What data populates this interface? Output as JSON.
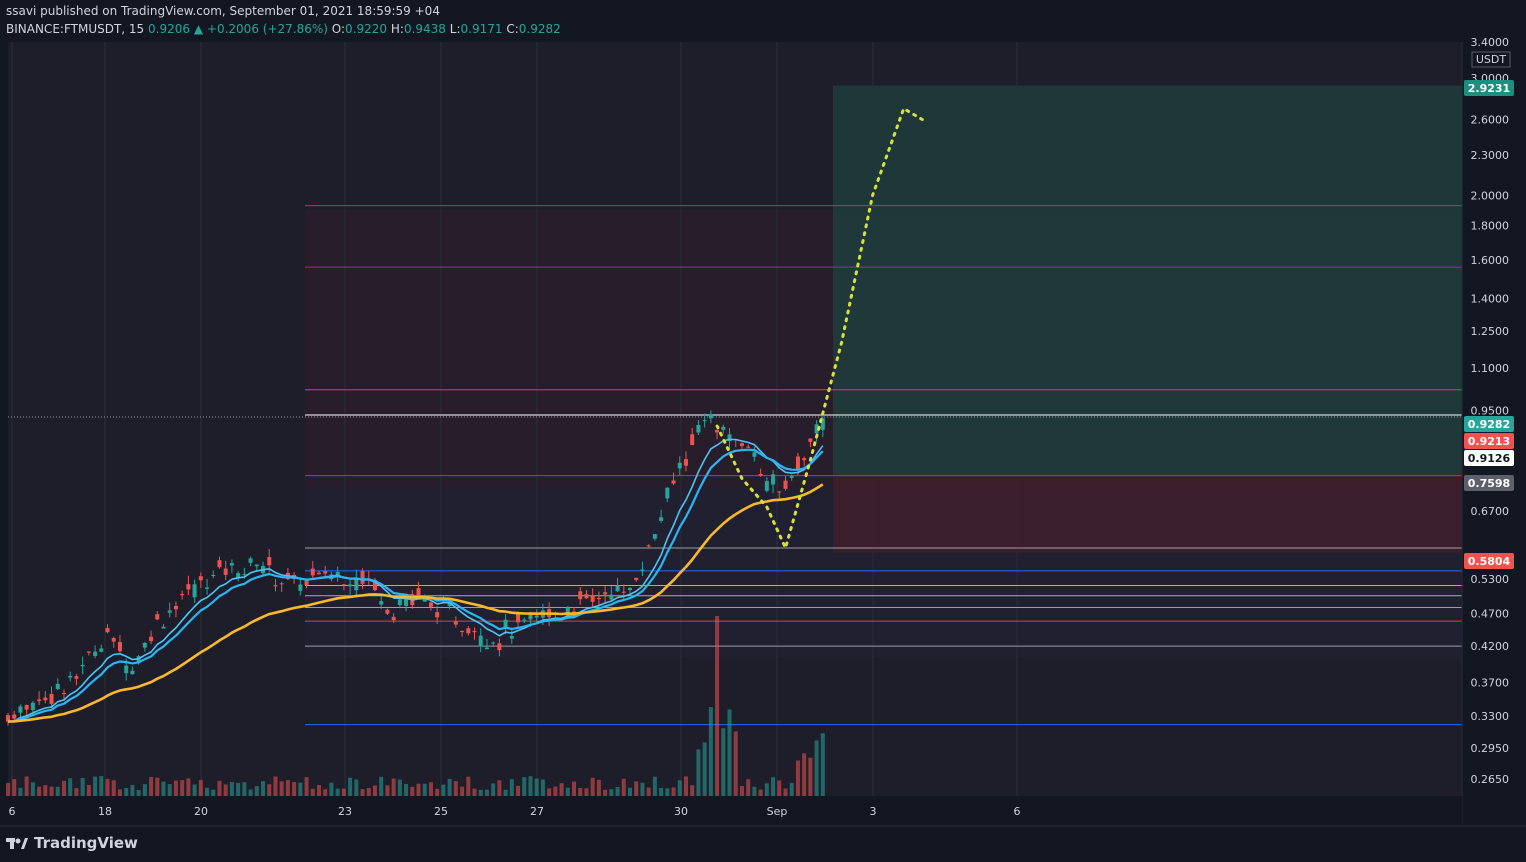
{
  "header": {
    "line1": "ssavi published on TradingView.com, September 01, 2021 18:59:59 +04",
    "symbol": "BINANCE:FTMUSDT, 15",
    "price": "0.9206",
    "change": "+0.2006 (+27.86%)",
    "o_label": "O:",
    "o": "0.9220",
    "h_label": "H:",
    "h": "0.9438",
    "l_label": "L:",
    "l": "0.9171",
    "c_label": "C:",
    "c": "0.9282"
  },
  "footer": {
    "brand": "TradingView"
  },
  "colors": {
    "background": "#131722",
    "up": "#26a69a",
    "down": "#ef5350",
    "ema_fast": "#29b6f6",
    "ema_slow": "#f9b92b",
    "projection": "#d8e23a",
    "long_zone": "#1f3a3a",
    "stop_zone": "#3d1f2b"
  },
  "chart_data": {
    "type": "candlestick",
    "symbol": "BINANCE:FTMUSDT",
    "timeframe": "15",
    "y_unit": "USDT",
    "y_scale": "log",
    "ylim": [
      0.25,
      3.4
    ],
    "x_ticks": [
      "6",
      "18",
      "20",
      "23",
      "25",
      "27",
      "30",
      "Sep",
      "3",
      "6"
    ],
    "y_ticks": [
      "3.4000",
      "3.0000",
      "2.6000",
      "2.3000",
      "2.0000",
      "1.8000",
      "1.6000",
      "1.4000",
      "1.2500",
      "1.1000",
      "0.9500",
      "0.6700",
      "0.5300",
      "0.4700",
      "0.4200",
      "0.3700",
      "0.3300",
      "0.2950",
      "0.2650"
    ],
    "price_tags": [
      {
        "label": "2.9231",
        "kind": "target"
      },
      {
        "label": "0.9282",
        "kind": "last"
      },
      {
        "label": "0.9213",
        "kind": "down"
      },
      {
        "label": "0.9126",
        "kind": "white"
      },
      {
        "label": "0.7598",
        "kind": "entry"
      },
      {
        "label": "0.5804",
        "kind": "stop"
      }
    ],
    "price_path": [
      [
        0,
        0.33
      ],
      [
        10,
        0.37
      ],
      [
        16,
        0.44
      ],
      [
        20,
        0.39
      ],
      [
        24,
        0.46
      ],
      [
        30,
        0.51
      ],
      [
        34,
        0.55
      ],
      [
        40,
        0.56
      ],
      [
        46,
        0.52
      ],
      [
        52,
        0.54
      ],
      [
        58,
        0.53
      ],
      [
        62,
        0.48
      ],
      [
        66,
        0.5
      ],
      [
        72,
        0.46
      ],
      [
        78,
        0.43
      ],
      [
        84,
        0.46
      ],
      [
        90,
        0.48
      ],
      [
        96,
        0.5
      ],
      [
        100,
        0.51
      ],
      [
        104,
        0.62
      ],
      [
        108,
        0.78
      ],
      [
        112,
        0.92
      ],
      [
        116,
        0.86
      ],
      [
        120,
        0.82
      ],
      [
        122,
        0.74
      ],
      [
        125,
        0.72
      ],
      [
        128,
        0.8
      ],
      [
        131,
        0.93
      ]
    ],
    "levels": [
      {
        "price": 1.93,
        "color": "#e91e63"
      },
      {
        "price": 1.56,
        "color": "#9c27b0"
      },
      {
        "price": 1.02,
        "color": "#f23645"
      },
      {
        "price": 0.935,
        "color": "#ffffff"
      },
      {
        "price": 0.758,
        "color": "#2962ff"
      },
      {
        "price": 0.59,
        "color": "#9e9e9e"
      },
      {
        "price": 0.545,
        "color": "#2962ff"
      },
      {
        "price": 0.518,
        "color": "#4dd0e1"
      },
      {
        "price": 0.5,
        "color": "#81c784"
      },
      {
        "price": 0.48,
        "color": "#9e9e9e"
      },
      {
        "price": 0.458,
        "color": "#f23645"
      },
      {
        "price": 0.42,
        "color": "#9e9e9e"
      },
      {
        "price": 0.32,
        "color": "#2962ff"
      }
    ],
    "position": {
      "entry": 0.7598,
      "target": 2.9231,
      "stop": 0.5804
    },
    "projection": [
      [
        114,
        0.9
      ],
      [
        118,
        0.75
      ],
      [
        122,
        0.68
      ],
      [
        125,
        0.59
      ],
      [
        129,
        0.8
      ],
      [
        134,
        1.2
      ],
      [
        139,
        2.0
      ],
      [
        144,
        2.7
      ],
      [
        147,
        2.6
      ]
    ]
  }
}
